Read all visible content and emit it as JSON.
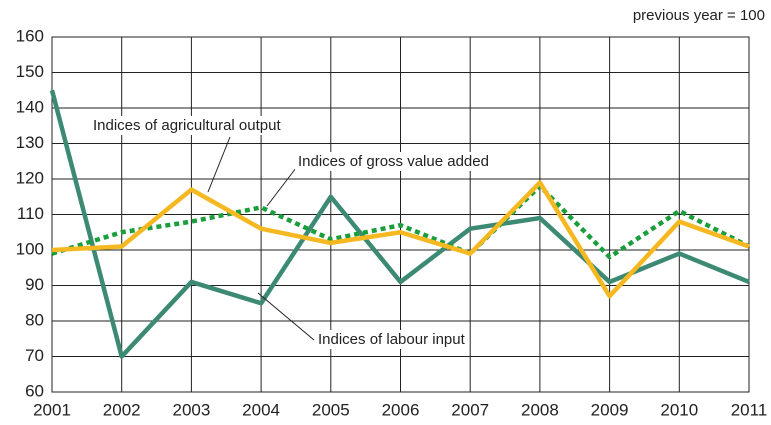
{
  "chart_data": {
    "type": "line",
    "subtitle": "previous year = 100",
    "categories": [
      "2001",
      "2002",
      "2003",
      "2004",
      "2005",
      "2006",
      "2007",
      "2008",
      "2009",
      "2010",
      "2011"
    ],
    "series": [
      {
        "name": "Indices of labour input",
        "color": "#3d8a74",
        "dash": false,
        "values": [
          145,
          70,
          91,
          85,
          115,
          91,
          106,
          109,
          91,
          99,
          91
        ]
      },
      {
        "name": "Indices of agricultural output",
        "color": "#f5b820",
        "dash": false,
        "values": [
          100,
          101,
          117,
          106,
          102,
          105,
          99,
          119,
          87,
          108,
          101
        ]
      },
      {
        "name": "Indices of gross value added",
        "color": "#1a9e3c",
        "dash": true,
        "values": [
          99,
          105,
          108,
          112,
          103,
          107,
          99,
          118,
          98,
          111,
          101
        ]
      }
    ],
    "ylim": [
      60,
      160
    ],
    "yticks": [
      60,
      70,
      80,
      90,
      100,
      110,
      120,
      130,
      140,
      150,
      160
    ],
    "grid": true
  }
}
